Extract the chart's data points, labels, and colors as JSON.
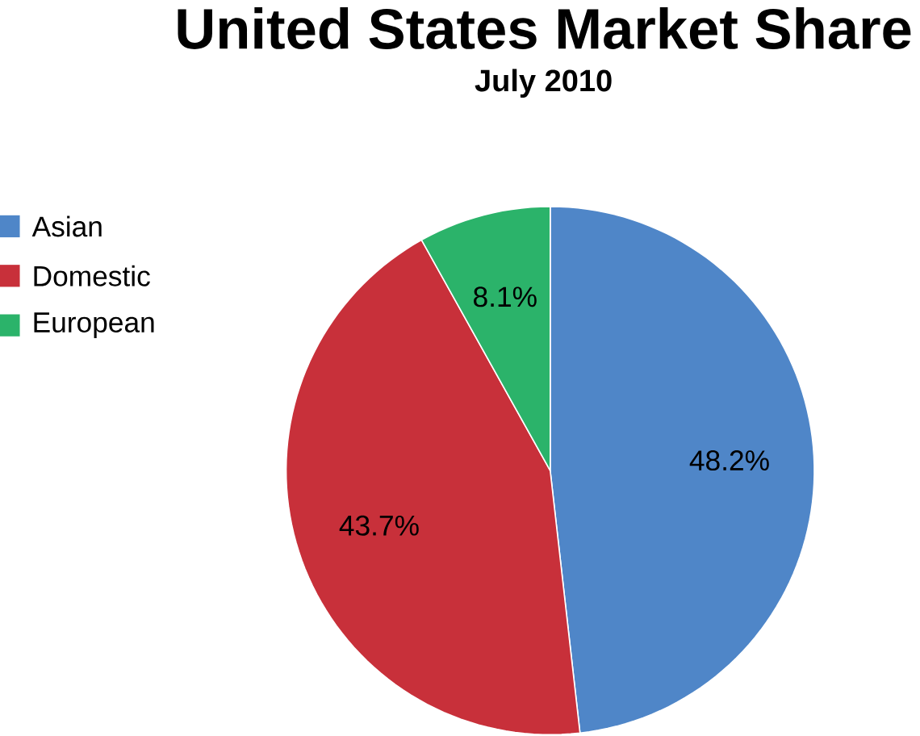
{
  "chart_data": {
    "type": "pie",
    "title": "United States Market Share",
    "subtitle": "July 2010",
    "categories": [
      "Asian",
      "Domestic",
      "European"
    ],
    "values": [
      48.2,
      43.7,
      8.1
    ],
    "value_labels": [
      "48.2%",
      "43.7%",
      "8.1%"
    ],
    "colors": [
      "#4f86c8",
      "#c8303a",
      "#2bb36a"
    ],
    "legend": "top left"
  }
}
